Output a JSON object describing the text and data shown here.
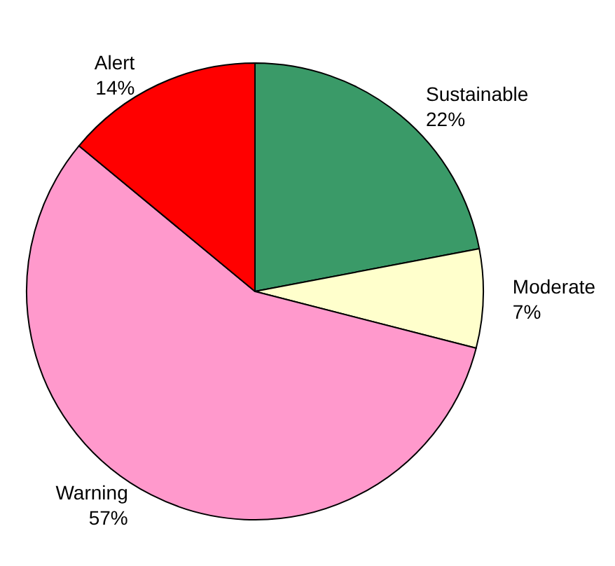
{
  "chart_data": {
    "type": "pie",
    "categories": [
      "Sustainable",
      "Moderate",
      "Warning",
      "Alert"
    ],
    "values": [
      22,
      7,
      57,
      14
    ],
    "colors": [
      "#3a9a68",
      "#ffffcc",
      "#ff99cc",
      "#ff0000"
    ],
    "value_labels": [
      "22%",
      "7%",
      "57%",
      "14%"
    ],
    "legend": false
  }
}
